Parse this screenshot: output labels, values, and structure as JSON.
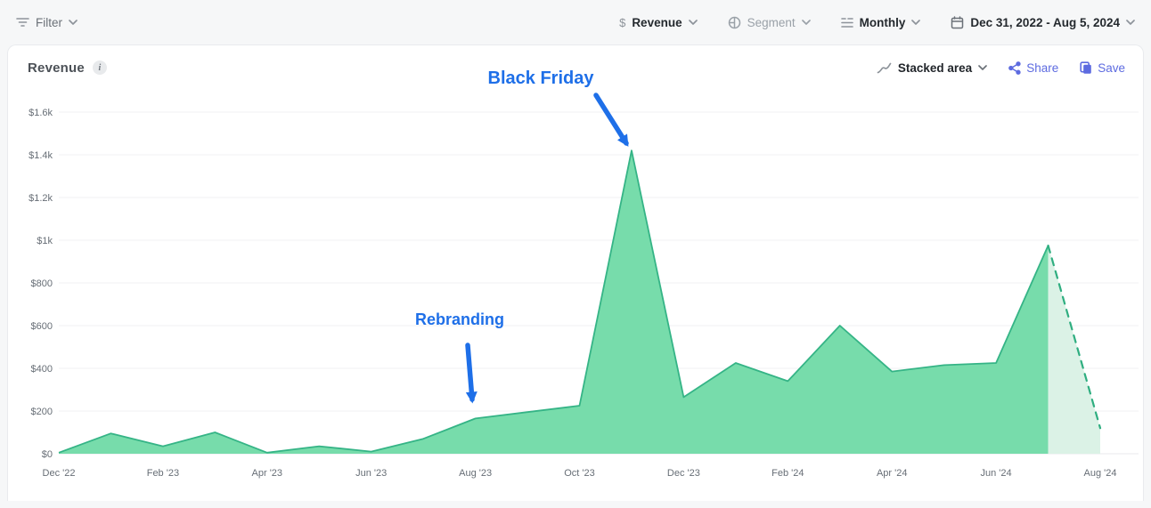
{
  "topbar": {
    "filter_label": "Filter",
    "metric_label": "Revenue",
    "segment_label": "Segment",
    "interval_label": "Monthly",
    "date_range_label": "Dec 31, 2022 - Aug 5, 2024"
  },
  "panel": {
    "title": "Revenue",
    "info_glyph": "i",
    "chart_type_label": "Stacked area",
    "share_label": "Share",
    "save_label": "Save"
  },
  "chart_data": {
    "type": "area",
    "title": "Revenue",
    "x": [
      "Dec '22",
      "Jan '23",
      "Feb '23",
      "Mar '23",
      "Apr '23",
      "May '23",
      "Jun '23",
      "Jul '23",
      "Aug '23",
      "Sep '23",
      "Oct '23",
      "Nov '23",
      "Dec '23",
      "Jan '24",
      "Feb '24",
      "Mar '24",
      "Apr '24",
      "May '24",
      "Jun '24",
      "Jul '24",
      "Aug '24"
    ],
    "series": [
      {
        "name": "Revenue",
        "values": [
          5,
          95,
          35,
          100,
          5,
          35,
          10,
          70,
          165,
          195,
          225,
          1420,
          265,
          425,
          340,
          600,
          385,
          415,
          425,
          975,
          120
        ]
      }
    ],
    "incomplete_from_index": 19,
    "x_tick_labels": [
      "Dec '22",
      "Feb '23",
      "Apr '23",
      "Jun '23",
      "Aug '23",
      "Oct '23",
      "Dec '23",
      "Feb '24",
      "Apr '24",
      "Jun '24",
      "Aug '24"
    ],
    "y_tick_labels": [
      "$0",
      "$200",
      "$400",
      "$600",
      "$800",
      "$1k",
      "$1.2k",
      "$1.4k",
      "$1.6k"
    ],
    "ylim": [
      0,
      1600
    ],
    "grid": "horizontal",
    "legend": "none",
    "annotations": [
      {
        "label": "Black Friday",
        "x": "Nov '23",
        "y": 1420
      },
      {
        "label": "Rebranding",
        "x": "Aug '23",
        "y": 165
      }
    ],
    "colors": {
      "fill": "#77dcab",
      "line": "#35b486",
      "incomplete_fill": "#dbf2e6",
      "dashed_line": "#2fae80",
      "annotation": "#1e6fe8",
      "grid": "#f0f1f3",
      "baseline": "#e8eaec"
    }
  }
}
